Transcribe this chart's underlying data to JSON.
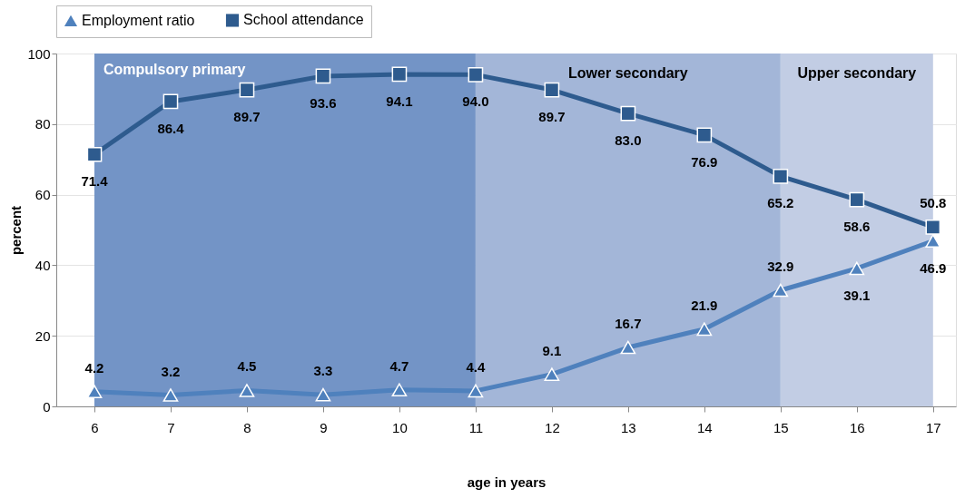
{
  "chart_data": {
    "type": "line",
    "xlabel": "age in years",
    "ylabel": "percent",
    "x": [
      6,
      7,
      8,
      9,
      10,
      11,
      12,
      13,
      14,
      15,
      16,
      17
    ],
    "xlim": [
      5.5,
      17.3
    ],
    "xticks": [
      6,
      7,
      8,
      9,
      10,
      11,
      12,
      13,
      14,
      15,
      16,
      17
    ],
    "ylim": [
      0,
      100
    ],
    "yticks": [
      0,
      20,
      40,
      60,
      80,
      100
    ],
    "series": [
      {
        "name": "Employment ratio",
        "color": "#4f81bd",
        "marker": "triangle",
        "values": [
          4.2,
          3.2,
          4.5,
          3.3,
          4.7,
          4.4,
          9.1,
          16.7,
          21.9,
          32.9,
          39.1,
          46.9
        ],
        "value_labels": [
          "4.2",
          "3.2",
          "4.5",
          "3.3",
          "4.7",
          "4.4",
          "9.1",
          "16.7",
          "21.9",
          "32.9",
          "39.1",
          "46.9"
        ]
      },
      {
        "name": "School attendance",
        "color": "#2e5b8e",
        "marker": "square",
        "values": [
          71.4,
          86.4,
          89.7,
          93.6,
          94.1,
          94.0,
          89.7,
          83.0,
          76.9,
          65.2,
          58.6,
          50.8
        ],
        "value_labels": [
          "71.4",
          "86.4",
          "89.7",
          "93.6",
          "94.1",
          "94.0",
          "89.7",
          "83.0",
          "76.9",
          "65.2",
          "58.6",
          "50.8"
        ]
      }
    ],
    "bands": [
      {
        "axis": "x",
        "from": 6,
        "to": 11,
        "label": "Compulsory primary",
        "color": "#7394c6"
      },
      {
        "axis": "x",
        "from": 11,
        "to": 15,
        "label": "Lower secondary",
        "color": "#a3b6d8"
      },
      {
        "axis": "x",
        "from": 15,
        "to": 17,
        "label": "Upper secondary",
        "color": "#c2cde4"
      }
    ],
    "grid": "y",
    "legend": "top",
    "line_style": "solid"
  }
}
